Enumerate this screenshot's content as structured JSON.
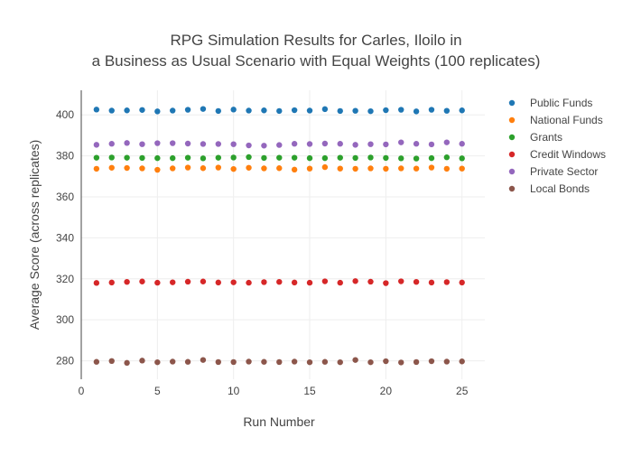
{
  "chart_data": {
    "type": "scatter",
    "title_lines": [
      "RPG Simulation Results for Carles, Iloilo in",
      "a Business as Usual Scenario with Equal Weights (100 replicates)"
    ],
    "xlabel": "Run Number",
    "ylabel": "Average Score (across replicates)",
    "xlim": [
      0,
      26.5
    ],
    "ylim": [
      271,
      412
    ],
    "xticks": [
      0,
      5,
      10,
      15,
      20,
      25
    ],
    "yticks": [
      280,
      300,
      320,
      340,
      360,
      380,
      400
    ],
    "grid": true,
    "legend_position": "right",
    "x": [
      1,
      2,
      3,
      4,
      5,
      6,
      7,
      8,
      9,
      10,
      11,
      12,
      13,
      14,
      15,
      16,
      17,
      18,
      19,
      20,
      21,
      22,
      23,
      24,
      25
    ],
    "series": [
      {
        "name": "Public Funds",
        "color": "#1f77b4",
        "values": [
          402.6,
          402.1,
          402.2,
          402.4,
          401.7,
          402.1,
          402.5,
          402.9,
          401.9,
          402.6,
          402.1,
          402.2,
          401.9,
          402.3,
          402.1,
          402.8,
          401.9,
          402.0,
          401.8,
          402.3,
          402.5,
          401.7,
          402.5,
          402.0,
          402.2
        ]
      },
      {
        "name": "National Funds",
        "color": "#ff7f0e",
        "values": [
          373.7,
          374.2,
          374.1,
          373.9,
          373.2,
          373.9,
          374.3,
          374.0,
          374.3,
          373.6,
          374.2,
          373.9,
          374.0,
          373.3,
          373.8,
          374.5,
          373.8,
          373.7,
          373.9,
          373.7,
          373.9,
          373.8,
          374.3,
          373.7,
          373.8
        ]
      },
      {
        "name": "Grants",
        "color": "#2ca02c",
        "values": [
          379.1,
          379.2,
          379.1,
          379.0,
          378.9,
          378.9,
          379.1,
          378.8,
          379.1,
          379.2,
          379.4,
          379.0,
          379.1,
          379.1,
          378.9,
          378.9,
          379.1,
          379.0,
          379.2,
          379.0,
          378.8,
          378.7,
          378.9,
          379.3,
          378.8
        ]
      },
      {
        "name": "Credit Windows",
        "color": "#d62728",
        "values": [
          318.0,
          318.2,
          318.5,
          318.7,
          318.1,
          318.3,
          318.6,
          318.7,
          318.2,
          318.3,
          318.1,
          318.4,
          318.5,
          318.2,
          318.1,
          318.8,
          318.1,
          318.9,
          318.6,
          317.9,
          318.8,
          318.5,
          318.2,
          318.4,
          318.2
        ]
      },
      {
        "name": "Private Sector",
        "color": "#9467bd",
        "values": [
          385.4,
          385.9,
          386.3,
          385.7,
          386.2,
          386.2,
          386.0,
          385.8,
          385.8,
          385.7,
          385.1,
          385.0,
          385.3,
          385.9,
          385.8,
          386.0,
          385.9,
          385.4,
          385.7,
          385.6,
          386.6,
          385.9,
          385.6,
          386.6,
          385.9
        ]
      },
      {
        "name": "Local Bonds",
        "color": "#8c564b",
        "values": [
          279.5,
          279.9,
          279.0,
          280.1,
          279.3,
          279.6,
          279.5,
          280.4,
          279.4,
          279.4,
          279.6,
          279.5,
          279.4,
          279.6,
          279.3,
          279.5,
          279.3,
          280.4,
          279.3,
          279.8,
          279.2,
          279.4,
          279.8,
          279.6,
          279.7
        ]
      }
    ]
  }
}
